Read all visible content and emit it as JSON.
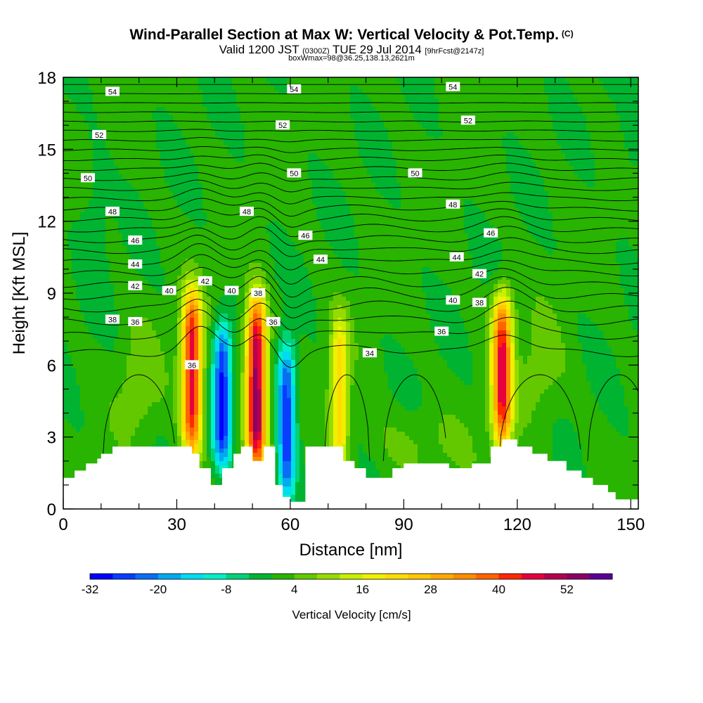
{
  "title": "Wind-Parallel Section at Max W: Vertical Velocity & Pot.Temp.",
  "title_mark": "(C)",
  "subtitle_main": "Valid 1200 JST",
  "subtitle_zulu": "(0300Z)",
  "subtitle_date": "TUE 29 Jul 2014",
  "subtitle_fcst": "[9hrFcst@2147z]",
  "subtitle2": "boxWmax=98@36.25,138.13,2621m",
  "chart_data": {
    "type": "heatmap",
    "xlabel": "Distance [nm]",
    "ylabel": "Height [Kft MSL]",
    "xlim": [
      0,
      152
    ],
    "ylim": [
      0,
      18
    ],
    "x_ticks": [
      "0",
      "30",
      "60",
      "90",
      "120",
      "150"
    ],
    "y_ticks": [
      "0",
      "3",
      "6",
      "9",
      "12",
      "15",
      "18"
    ],
    "colorbar": {
      "label": "Vertical Velocity [cm/s]",
      "tick_labels": [
        "-32",
        "-20",
        "-8",
        "4",
        "16",
        "28",
        "40",
        "52"
      ],
      "bins": [
        -32,
        56
      ],
      "bin_width": 4,
      "colors": [
        "#0000ff",
        "#0a3cff",
        "#0a6ef5",
        "#00aaf0",
        "#00dcf0",
        "#00f0c8",
        "#00d278",
        "#00b432",
        "#28b400",
        "#64c800",
        "#96dc00",
        "#c8f000",
        "#f0f000",
        "#ffdc00",
        "#ffc800",
        "#ffaa00",
        "#ff8c00",
        "#ff6400",
        "#ff2800",
        "#e6003c",
        "#b40050",
        "#8c0064",
        "#5a0096"
      ]
    },
    "features": [
      {
        "name": "w-max",
        "x": 34,
        "y_top": 8.6,
        "y_bottom": 2.6,
        "w": 46
      },
      {
        "name": "w-min",
        "x": 42,
        "y_top": 7.2,
        "y_bottom": 2.2,
        "w": -30
      },
      {
        "name": "w-max",
        "x": 51,
        "y_top": 8.4,
        "y_bottom": 2.0,
        "w": 54
      },
      {
        "name": "w-min",
        "x": 59,
        "y_top": 6.5,
        "y_bottom": 0.6,
        "w": -28
      },
      {
        "name": "w-max",
        "x": 73,
        "y_top": 7.6,
        "y_bottom": 2.0,
        "w": 22
      },
      {
        "name": "w-max",
        "x": 116,
        "y_top": 8.5,
        "y_bottom": 3.0,
        "w": 44
      }
    ],
    "terrain": {
      "x": [
        0,
        3,
        6,
        9,
        10,
        13,
        18,
        30,
        34,
        36,
        39,
        42,
        45,
        47,
        50,
        53,
        56,
        58,
        60,
        64,
        68,
        74,
        77,
        80,
        84,
        87,
        90,
        102,
        108,
        113,
        116,
        120,
        124,
        128,
        133,
        137,
        140,
        144,
        146,
        152
      ],
      "y": [
        1.3,
        1.6,
        1.9,
        2.1,
        2.3,
        2.6,
        2.6,
        2.6,
        2.3,
        1.7,
        1.0,
        1.7,
        2.3,
        2.6,
        2.0,
        2.6,
        1.0,
        0.5,
        0.3,
        2.6,
        2.6,
        2.0,
        1.7,
        1.3,
        1.3,
        1.7,
        1.9,
        1.7,
        1.9,
        2.6,
        2.9,
        2.6,
        2.3,
        2.0,
        1.6,
        1.3,
        1.0,
        0.7,
        0.4,
        0.4
      ]
    },
    "isentropes": [
      {
        "theta": 34,
        "label": "34"
      },
      {
        "theta": 36,
        "label": "36"
      },
      {
        "theta": 38,
        "label": "38"
      },
      {
        "theta": 40,
        "label": "40"
      },
      {
        "theta": 42,
        "label": "42"
      },
      {
        "theta": 44,
        "label": "44"
      },
      {
        "theta": 46,
        "label": "46"
      },
      {
        "theta": 48,
        "label": "48"
      },
      {
        "theta": 50,
        "label": "50"
      },
      {
        "theta": 52,
        "label": "52"
      },
      {
        "theta": 54,
        "label": "54"
      }
    ],
    "contour_labels": [
      {
        "text": "54",
        "x": 13,
        "y": 17.4
      },
      {
        "text": "54",
        "x": 61,
        "y": 17.5
      },
      {
        "text": "54",
        "x": 103,
        "y": 17.6
      },
      {
        "text": "52",
        "x": 9.5,
        "y": 15.6
      },
      {
        "text": "52",
        "x": 58,
        "y": 16.0
      },
      {
        "text": "52",
        "x": 107,
        "y": 16.2
      },
      {
        "text": "50",
        "x": 6.5,
        "y": 13.8
      },
      {
        "text": "50",
        "x": 61,
        "y": 14.0
      },
      {
        "text": "50",
        "x": 93,
        "y": 14.0
      },
      {
        "text": "48",
        "x": 13,
        "y": 12.4
      },
      {
        "text": "48",
        "x": 48.5,
        "y": 12.4
      },
      {
        "text": "48",
        "x": 103,
        "y": 12.7
      },
      {
        "text": "46",
        "x": 19,
        "y": 11.2
      },
      {
        "text": "46",
        "x": 64,
        "y": 11.4
      },
      {
        "text": "46",
        "x": 113,
        "y": 11.5
      },
      {
        "text": "44",
        "x": 19,
        "y": 10.2
      },
      {
        "text": "44",
        "x": 68,
        "y": 10.4
      },
      {
        "text": "44",
        "x": 104,
        "y": 10.5
      },
      {
        "text": "42",
        "x": 19,
        "y": 9.3
      },
      {
        "text": "42",
        "x": 37.5,
        "y": 9.5
      },
      {
        "text": "42",
        "x": 110,
        "y": 9.8
      },
      {
        "text": "40",
        "x": 28,
        "y": 9.1
      },
      {
        "text": "40",
        "x": 44.5,
        "y": 9.1
      },
      {
        "text": "40",
        "x": 103,
        "y": 8.7
      },
      {
        "text": "38",
        "x": 51.5,
        "y": 9.0
      },
      {
        "text": "38",
        "x": 13,
        "y": 7.9
      },
      {
        "text": "38",
        "x": 110,
        "y": 8.6
      },
      {
        "text": "36",
        "x": 19,
        "y": 7.8
      },
      {
        "text": "36",
        "x": 55.5,
        "y": 7.8
      },
      {
        "text": "36",
        "x": 100,
        "y": 7.4
      },
      {
        "text": "36",
        "x": 34,
        "y": 6.0
      },
      {
        "text": "34",
        "x": 81,
        "y": 6.5
      }
    ]
  }
}
